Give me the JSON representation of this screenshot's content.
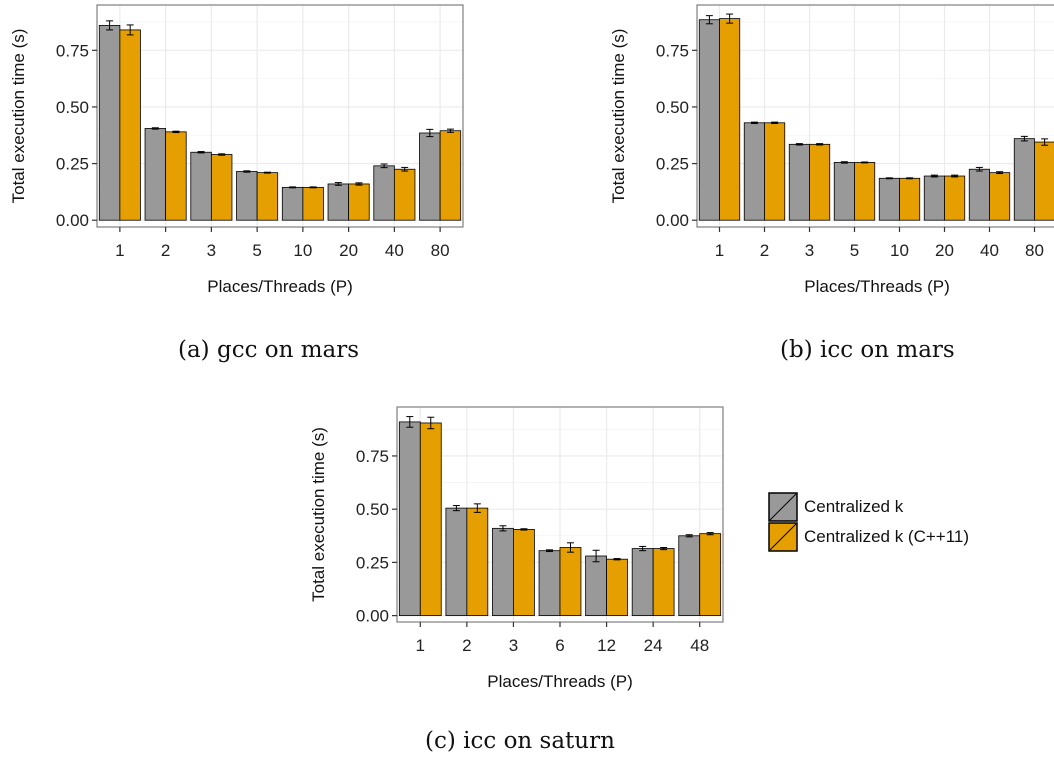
{
  "colors": {
    "grey": "#999999",
    "orange": "#e69f00",
    "grid": "#ebebeb",
    "frame": "#7f7f7f"
  },
  "legend": {
    "items": [
      {
        "label": "Centralized k",
        "color": "#999999"
      },
      {
        "label": "Centralized k (C++11)",
        "color": "#e69f00"
      }
    ]
  },
  "chart_data": [
    {
      "id": "a",
      "type": "bar",
      "caption": "(a) gcc on mars",
      "xlabel": "Places/Threads (P)",
      "ylabel": "Total execution time (s)",
      "ylim": [
        -0.03,
        0.95
      ],
      "yticks": [
        "0.00",
        "0.25",
        "0.50",
        "0.75"
      ],
      "ytick_values": [
        0,
        0.25,
        0.5,
        0.75
      ],
      "categories": [
        "1",
        "2",
        "3",
        "5",
        "10",
        "20",
        "40",
        "80"
      ],
      "grid": true,
      "series": [
        {
          "name": "Centralized k",
          "color": "#999999",
          "values": [
            0.86,
            0.405,
            0.3,
            0.215,
            0.145,
            0.16,
            0.24,
            0.385
          ],
          "errors": [
            0.02,
            0.003,
            0.003,
            0.003,
            0.002,
            0.006,
            0.008,
            0.016
          ]
        },
        {
          "name": "Centralized k (C++11)",
          "color": "#e69f00",
          "values": [
            0.84,
            0.39,
            0.29,
            0.21,
            0.145,
            0.16,
            0.225,
            0.395
          ],
          "errors": [
            0.022,
            0.003,
            0.003,
            0.002,
            0.002,
            0.005,
            0.008,
            0.007
          ]
        }
      ]
    },
    {
      "id": "b",
      "type": "bar",
      "caption": "(b) icc on mars",
      "xlabel": "Places/Threads (P)",
      "ylabel": "Total execution time (s)",
      "ylim": [
        -0.03,
        0.95
      ],
      "yticks": [
        "0.00",
        "0.25",
        "0.50",
        "0.75"
      ],
      "ytick_values": [
        0,
        0.25,
        0.5,
        0.75
      ],
      "categories": [
        "1",
        "2",
        "3",
        "5",
        "10",
        "20",
        "40",
        "80"
      ],
      "grid": true,
      "series": [
        {
          "name": "Centralized k",
          "color": "#999999",
          "values": [
            0.885,
            0.43,
            0.335,
            0.255,
            0.185,
            0.195,
            0.225,
            0.36
          ],
          "errors": [
            0.018,
            0.003,
            0.003,
            0.003,
            0.002,
            0.004,
            0.008,
            0.01
          ]
        },
        {
          "name": "Centralized k (C++11)",
          "color": "#e69f00",
          "values": [
            0.89,
            0.43,
            0.335,
            0.255,
            0.185,
            0.195,
            0.21,
            0.345
          ],
          "errors": [
            0.02,
            0.003,
            0.003,
            0.002,
            0.002,
            0.004,
            0.004,
            0.014
          ]
        }
      ]
    },
    {
      "id": "c",
      "type": "bar",
      "caption": "(c) icc on saturn",
      "xlabel": "Places/Threads (P)",
      "ylabel": "Total execution time (s)",
      "ylim": [
        -0.03,
        0.98
      ],
      "yticks": [
        "0.00",
        "0.25",
        "0.50",
        "0.75"
      ],
      "ytick_values": [
        0,
        0.25,
        0.5,
        0.75
      ],
      "categories": [
        "1",
        "2",
        "3",
        "6",
        "12",
        "24",
        "48"
      ],
      "grid": true,
      "series": [
        {
          "name": "Centralized k",
          "color": "#999999",
          "values": [
            0.91,
            0.505,
            0.41,
            0.305,
            0.28,
            0.315,
            0.375
          ],
          "errors": [
            0.025,
            0.012,
            0.012,
            0.004,
            0.027,
            0.01,
            0.005
          ]
        },
        {
          "name": "Centralized k (C++11)",
          "color": "#e69f00",
          "values": [
            0.905,
            0.505,
            0.405,
            0.32,
            0.265,
            0.315,
            0.385
          ],
          "errors": [
            0.027,
            0.02,
            0.003,
            0.022,
            0.003,
            0.005,
            0.005
          ]
        }
      ]
    }
  ]
}
